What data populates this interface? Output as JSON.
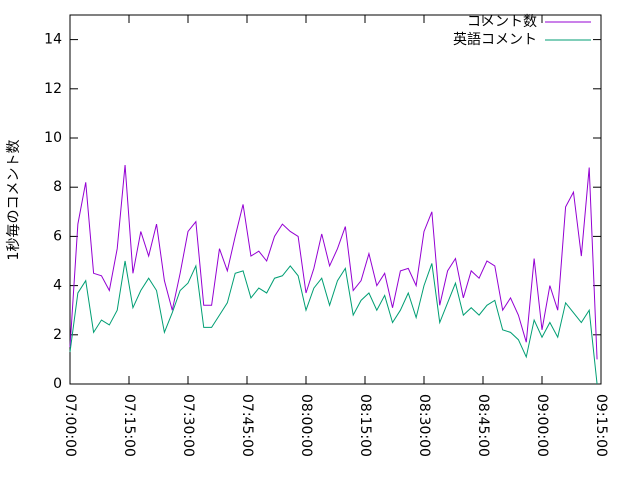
{
  "chart_data": {
    "type": "line",
    "ylabel": "1秒毎のコメント数",
    "x": [
      "07:00:00",
      "07:02:00",
      "07:04:00",
      "07:06:00",
      "07:08:00",
      "07:10:00",
      "07:12:00",
      "07:14:00",
      "07:16:00",
      "07:18:00",
      "07:20:00",
      "07:22:00",
      "07:24:00",
      "07:26:00",
      "07:28:00",
      "07:30:00",
      "07:32:00",
      "07:34:00",
      "07:36:00",
      "07:38:00",
      "07:40:00",
      "07:42:00",
      "07:44:00",
      "07:46:00",
      "07:48:00",
      "07:50:00",
      "07:52:00",
      "07:54:00",
      "07:56:00",
      "07:58:00",
      "08:00:00",
      "08:02:00",
      "08:04:00",
      "08:06:00",
      "08:08:00",
      "08:10:00",
      "08:12:00",
      "08:14:00",
      "08:16:00",
      "08:18:00",
      "08:20:00",
      "08:22:00",
      "08:24:00",
      "08:26:00",
      "08:28:00",
      "08:30:00",
      "08:32:00",
      "08:34:00",
      "08:36:00",
      "08:38:00",
      "08:40:00",
      "08:42:00",
      "08:44:00",
      "08:46:00",
      "08:48:00",
      "08:50:00",
      "08:52:00",
      "08:54:00",
      "08:56:00",
      "08:58:00",
      "09:00:00",
      "09:02:00",
      "09:04:00",
      "09:06:00",
      "09:08:00",
      "09:10:00",
      "09:12:00",
      "09:14:00"
    ],
    "series": [
      {
        "name": "コメント数",
        "color": "#9400d3",
        "values": [
          1.5,
          6.5,
          8.2,
          4.5,
          4.4,
          3.8,
          5.5,
          8.9,
          4.5,
          6.2,
          5.2,
          6.5,
          4.2,
          3.0,
          4.5,
          6.2,
          6.6,
          3.2,
          3.2,
          5.5,
          4.6,
          6.0,
          7.3,
          5.2,
          5.4,
          5.0,
          6.0,
          6.5,
          6.2,
          6.0,
          3.7,
          4.7,
          6.1,
          4.8,
          5.5,
          6.4,
          3.8,
          4.2,
          5.3,
          4.0,
          4.5,
          3.1,
          4.6,
          4.7,
          4.0,
          6.2,
          7.0,
          3.2,
          4.6,
          5.1,
          3.5,
          4.6,
          4.3,
          5.0,
          4.8,
          3.0,
          3.5,
          2.8,
          1.7,
          5.1,
          2.2,
          4.0,
          3.0,
          7.2,
          7.8,
          5.2,
          8.8,
          1.0
        ]
      },
      {
        "name": "英語コメント",
        "color": "#009e73",
        "values": [
          1.3,
          3.7,
          4.2,
          2.1,
          2.6,
          2.4,
          3.0,
          5.0,
          3.1,
          3.8,
          4.3,
          3.8,
          2.1,
          2.9,
          3.8,
          4.1,
          4.8,
          2.3,
          2.3,
          2.8,
          3.3,
          4.5,
          4.6,
          3.5,
          3.9,
          3.7,
          4.3,
          4.4,
          4.8,
          4.4,
          3.0,
          3.9,
          4.3,
          3.2,
          4.2,
          4.7,
          2.8,
          3.4,
          3.7,
          3.0,
          3.6,
          2.5,
          3.0,
          3.7,
          2.7,
          4.0,
          4.9,
          2.5,
          3.3,
          4.1,
          2.8,
          3.1,
          2.8,
          3.2,
          3.4,
          2.2,
          2.1,
          1.8,
          1.1,
          2.6,
          1.9,
          2.5,
          1.9,
          3.3,
          2.9,
          2.5,
          3.0,
          0
        ]
      }
    ],
    "xlim": [
      "07:00:00",
      "09:15:00"
    ],
    "xticks": [
      "07:00:00",
      "07:15:00",
      "07:30:00",
      "07:45:00",
      "08:00:00",
      "08:15:00",
      "08:30:00",
      "08:45:00",
      "09:00:00",
      "09:15:00"
    ],
    "ylim": [
      0,
      15
    ],
    "yticks": [
      0,
      2,
      4,
      6,
      8,
      10,
      12,
      14
    ],
    "legend": "top-right"
  }
}
